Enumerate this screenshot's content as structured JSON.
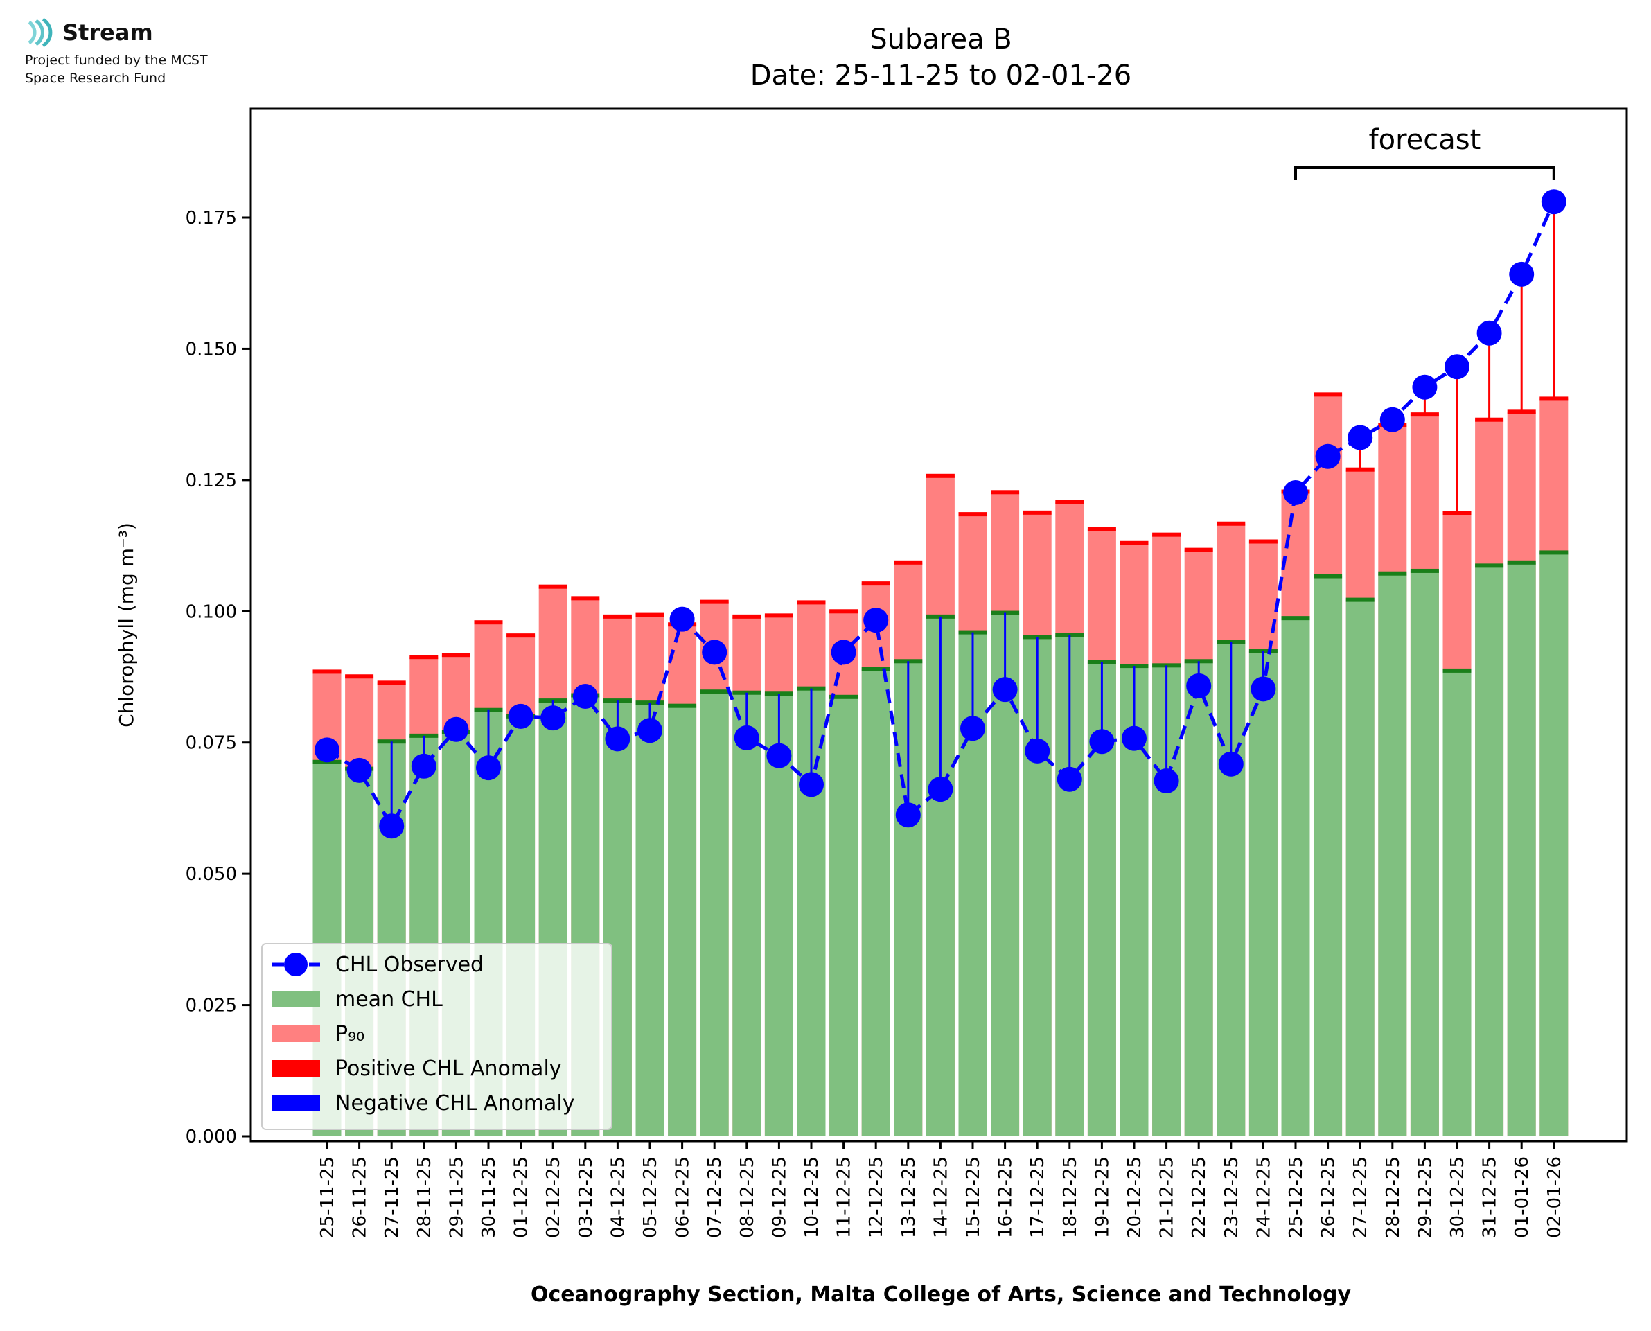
{
  "logo": {
    "name": "Stream",
    "funding_line1": "Project funded by the MCST",
    "funding_line2": "Space Research Fund"
  },
  "chart_data": {
    "type": "bar",
    "title": "Subarea B",
    "subtitle": "Date: 25-11-25 to 02-01-26",
    "xlabel": "Oceanography Section, Malta College of Arts, Science and Technology",
    "ylabel": "Chlorophyll (mg m⁻³)",
    "ylim": [
      0,
      0.195
    ],
    "yticks": [
      "0.000",
      "0.025",
      "0.050",
      "0.075",
      "0.100",
      "0.125",
      "0.150",
      "0.175"
    ],
    "forecast_label": "forecast",
    "forecast_range": [
      "25-12-25",
      "02-01-26"
    ],
    "categories": [
      "25-11-25",
      "26-11-25",
      "27-11-25",
      "28-11-25",
      "29-11-25",
      "30-11-25",
      "01-12-25",
      "02-12-25",
      "03-12-25",
      "04-12-25",
      "05-12-25",
      "06-12-25",
      "07-12-25",
      "08-12-25",
      "09-12-25",
      "10-12-25",
      "11-12-25",
      "12-12-25",
      "13-12-25",
      "14-12-25",
      "15-12-25",
      "16-12-25",
      "17-12-25",
      "18-12-25",
      "19-12-25",
      "20-12-25",
      "21-12-25",
      "22-12-25",
      "23-12-25",
      "24-12-25",
      "25-12-25",
      "26-12-25",
      "27-12-25",
      "28-12-25",
      "29-12-25",
      "30-12-25",
      "31-12-25",
      "01-01-26",
      "02-01-26"
    ],
    "series": [
      {
        "name": "mean CHL",
        "color": "#80c080",
        "values": [
          0.0713,
          0.07,
          0.0752,
          0.0763,
          0.077,
          0.0812,
          0.08,
          0.083,
          0.084,
          0.083,
          0.0826,
          0.082,
          0.0847,
          0.0845,
          0.0843,
          0.0853,
          0.0837,
          0.089,
          0.0905,
          0.099,
          0.096,
          0.0997,
          0.0951,
          0.0955,
          0.0903,
          0.0896,
          0.0897,
          0.0905,
          0.0942,
          0.0925,
          0.0987,
          0.1067,
          0.1022,
          0.1072,
          0.1077,
          0.0887,
          0.1087,
          0.1093,
          0.1112
        ]
      },
      {
        "name": "P₉₀",
        "color": "#ff8080",
        "values": [
          0.0885,
          0.0876,
          0.0864,
          0.0913,
          0.0917,
          0.0979,
          0.0954,
          0.1047,
          0.1025,
          0.099,
          0.0993,
          0.0975,
          0.1018,
          0.099,
          0.0992,
          0.1017,
          0.1,
          0.1053,
          0.1093,
          0.1258,
          0.1185,
          0.1227,
          0.1188,
          0.1208,
          0.1157,
          0.113,
          0.1146,
          0.1117,
          0.1167,
          0.1133,
          0.1228,
          0.1413,
          0.127,
          0.1355,
          0.1375,
          0.1187,
          0.1365,
          0.138,
          0.1405
        ]
      },
      {
        "name": "CHL Observed",
        "color": "#0000ff",
        "values": [
          0.0736,
          0.0697,
          0.0591,
          0.0705,
          0.0775,
          0.0702,
          0.08,
          0.0797,
          0.0838,
          0.0757,
          0.0773,
          0.0985,
          0.0922,
          0.0759,
          0.0725,
          0.067,
          0.0922,
          0.0983,
          0.0612,
          0.0661,
          0.0777,
          0.0851,
          0.0734,
          0.068,
          0.0752,
          0.0758,
          0.0677,
          0.0858,
          0.0709,
          0.0852,
          0.1226,
          0.1295,
          0.1331,
          0.1365,
          0.1427,
          0.1466,
          0.153,
          0.1642,
          0.178
        ]
      }
    ],
    "legend": [
      {
        "label": "CHL Observed",
        "color": "#0000ff",
        "kind": "line-marker"
      },
      {
        "label": "mean CHL",
        "color": "#80c080",
        "kind": "patch"
      },
      {
        "label": "P₉₀",
        "color": "#ff8080",
        "kind": "patch"
      },
      {
        "label": "Positive CHL Anomaly",
        "color": "#ff0000",
        "kind": "patch"
      },
      {
        "label": "Negative CHL Anomaly",
        "color": "#0000ff",
        "kind": "patch"
      }
    ],
    "legend_position": "lower-left"
  }
}
